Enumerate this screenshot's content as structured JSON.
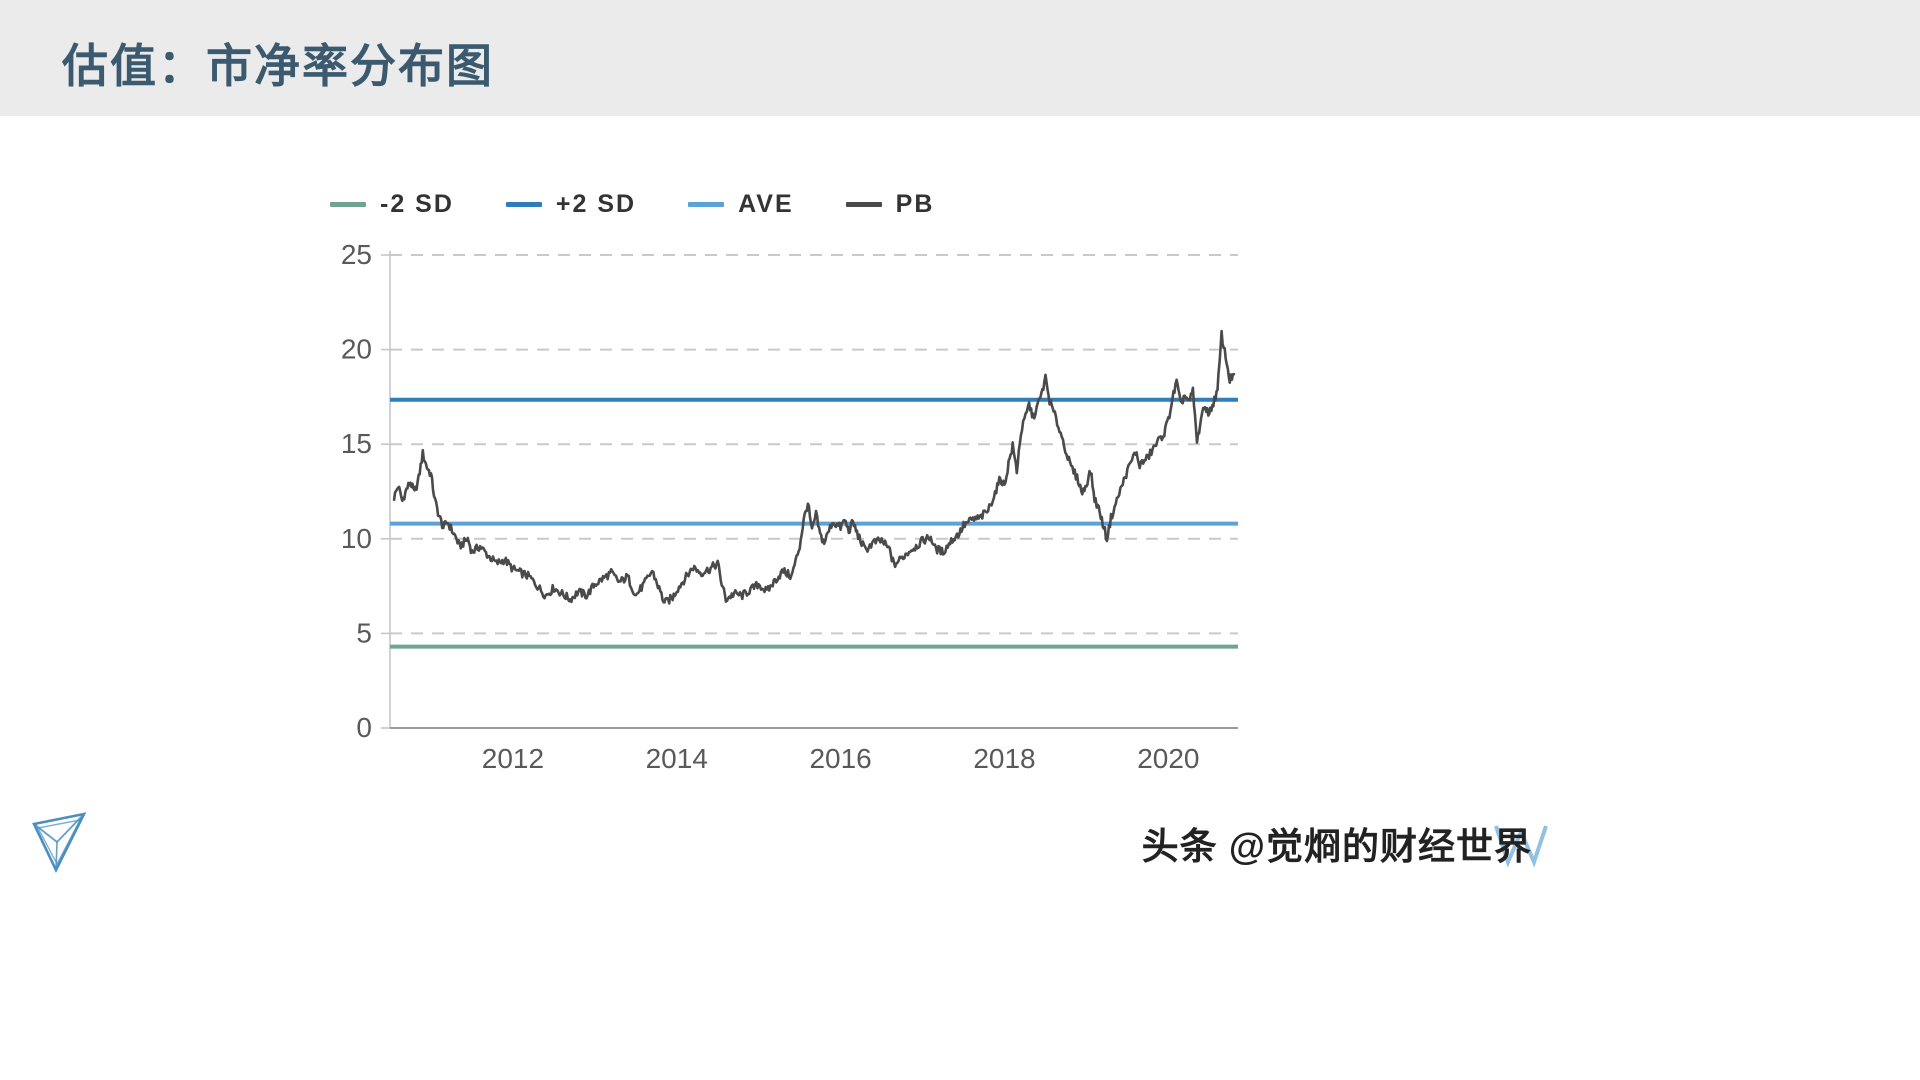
{
  "header": {
    "title": "估值：市净率分布图"
  },
  "watermark": {
    "text": "头条 @觉烱的财经世界"
  },
  "chart_data": {
    "type": "line",
    "title": "",
    "xlabel": "",
    "ylabel": "",
    "xlim": [
      2010.5,
      2020.85
    ],
    "ylim": [
      0,
      25
    ],
    "yticks": [
      0,
      5,
      10,
      15,
      20,
      25
    ],
    "xticks": [
      2012,
      2014,
      2016,
      2018,
      2020
    ],
    "grid": "horizontal-dashed",
    "legend_position": "top",
    "colors": {
      "grid": "#c9c9c9",
      "axis": "#9a9a9a",
      "axis_left": "#c6c6c6",
      "tick_text": "#595959"
    },
    "series": [
      {
        "name": "-2 SD",
        "type": "hline",
        "value": 4.3,
        "color": "#6fa392"
      },
      {
        "name": "+2 SD",
        "type": "hline",
        "value": 17.35,
        "color": "#2e7ebc"
      },
      {
        "name": "AVE",
        "type": "hline",
        "value": 10.8,
        "color": "#5aa2d8"
      },
      {
        "name": "PB",
        "type": "line",
        "color": "#4a4a4a",
        "points": [
          [
            2010.55,
            12.2
          ],
          [
            2010.6,
            12.8
          ],
          [
            2010.65,
            12.0
          ],
          [
            2010.7,
            12.6
          ],
          [
            2010.75,
            13.0
          ],
          [
            2010.8,
            12.4
          ],
          [
            2010.85,
            13.2
          ],
          [
            2010.9,
            14.5
          ],
          [
            2010.95,
            13.8
          ],
          [
            2011.0,
            13.4
          ],
          [
            2011.05,
            12.0
          ],
          [
            2011.1,
            11.2
          ],
          [
            2011.15,
            10.6
          ],
          [
            2011.2,
            10.9
          ],
          [
            2011.3,
            10.1
          ],
          [
            2011.35,
            9.6
          ],
          [
            2011.45,
            10.0
          ],
          [
            2011.5,
            9.3
          ],
          [
            2011.6,
            9.6
          ],
          [
            2011.7,
            9.1
          ],
          [
            2011.8,
            8.7
          ],
          [
            2011.9,
            8.9
          ],
          [
            2012.0,
            8.4
          ],
          [
            2012.1,
            8.2
          ],
          [
            2012.2,
            8.0
          ],
          [
            2012.3,
            7.5
          ],
          [
            2012.4,
            7.0
          ],
          [
            2012.5,
            7.4
          ],
          [
            2012.6,
            7.1
          ],
          [
            2012.7,
            6.8
          ],
          [
            2012.8,
            7.2
          ],
          [
            2012.9,
            7.0
          ],
          [
            2013.0,
            7.6
          ],
          [
            2013.1,
            7.9
          ],
          [
            2013.2,
            8.2
          ],
          [
            2013.3,
            7.7
          ],
          [
            2013.4,
            8.0
          ],
          [
            2013.5,
            7.0
          ],
          [
            2013.6,
            7.6
          ],
          [
            2013.7,
            8.3
          ],
          [
            2013.8,
            7.2
          ],
          [
            2013.85,
            6.6
          ],
          [
            2013.95,
            6.9
          ],
          [
            2014.0,
            7.3
          ],
          [
            2014.1,
            7.9
          ],
          [
            2014.2,
            8.5
          ],
          [
            2014.3,
            8.2
          ],
          [
            2014.4,
            8.4
          ],
          [
            2014.5,
            8.7
          ],
          [
            2014.55,
            7.6
          ],
          [
            2014.6,
            6.8
          ],
          [
            2014.7,
            7.1
          ],
          [
            2014.8,
            7.0
          ],
          [
            2014.9,
            7.3
          ],
          [
            2015.0,
            7.6
          ],
          [
            2015.1,
            7.2
          ],
          [
            2015.2,
            7.8
          ],
          [
            2015.3,
            8.3
          ],
          [
            2015.4,
            8.0
          ],
          [
            2015.45,
            8.8
          ],
          [
            2015.5,
            9.6
          ],
          [
            2015.55,
            11.0
          ],
          [
            2015.6,
            11.9
          ],
          [
            2015.65,
            10.4
          ],
          [
            2015.7,
            11.3
          ],
          [
            2015.75,
            10.2
          ],
          [
            2015.8,
            9.8
          ],
          [
            2015.9,
            10.9
          ],
          [
            2016.0,
            10.6
          ],
          [
            2016.05,
            11.0
          ],
          [
            2016.1,
            10.4
          ],
          [
            2016.15,
            10.9
          ],
          [
            2016.2,
            10.3
          ],
          [
            2016.3,
            9.4
          ],
          [
            2016.4,
            9.8
          ],
          [
            2016.5,
            9.9
          ],
          [
            2016.6,
            9.4
          ],
          [
            2016.65,
            8.6
          ],
          [
            2016.75,
            9.0
          ],
          [
            2016.85,
            9.4
          ],
          [
            2016.95,
            9.7
          ],
          [
            2017.0,
            9.9
          ],
          [
            2017.1,
            10.1
          ],
          [
            2017.15,
            9.5
          ],
          [
            2017.25,
            9.3
          ],
          [
            2017.35,
            9.9
          ],
          [
            2017.45,
            10.3
          ],
          [
            2017.5,
            10.7
          ],
          [
            2017.6,
            11.0
          ],
          [
            2017.7,
            11.1
          ],
          [
            2017.8,
            11.5
          ],
          [
            2017.9,
            12.6
          ],
          [
            2017.95,
            13.2
          ],
          [
            2018.0,
            12.8
          ],
          [
            2018.05,
            14.0
          ],
          [
            2018.1,
            14.9
          ],
          [
            2018.15,
            13.6
          ],
          [
            2018.2,
            15.6
          ],
          [
            2018.3,
            17.1
          ],
          [
            2018.35,
            16.4
          ],
          [
            2018.45,
            17.6
          ],
          [
            2018.5,
            18.5
          ],
          [
            2018.55,
            17.3
          ],
          [
            2018.6,
            16.7
          ],
          [
            2018.7,
            15.4
          ],
          [
            2018.8,
            13.9
          ],
          [
            2018.9,
            13.1
          ],
          [
            2018.95,
            12.4
          ],
          [
            2019.0,
            12.9
          ],
          [
            2019.05,
            13.6
          ],
          [
            2019.1,
            12.1
          ],
          [
            2019.15,
            11.6
          ],
          [
            2019.2,
            10.8
          ],
          [
            2019.25,
            10.0
          ],
          [
            2019.3,
            11.1
          ],
          [
            2019.4,
            12.4
          ],
          [
            2019.5,
            13.6
          ],
          [
            2019.6,
            14.6
          ],
          [
            2019.65,
            13.9
          ],
          [
            2019.75,
            14.3
          ],
          [
            2019.85,
            15.0
          ],
          [
            2019.95,
            15.6
          ],
          [
            2020.0,
            16.3
          ],
          [
            2020.05,
            17.4
          ],
          [
            2020.1,
            18.3
          ],
          [
            2020.15,
            17.1
          ],
          [
            2020.2,
            17.6
          ],
          [
            2020.25,
            17.2
          ],
          [
            2020.3,
            17.8
          ],
          [
            2020.35,
            15.1
          ],
          [
            2020.4,
            16.4
          ],
          [
            2020.45,
            17.0
          ],
          [
            2020.5,
            16.6
          ],
          [
            2020.55,
            17.2
          ],
          [
            2020.6,
            17.8
          ],
          [
            2020.65,
            20.8
          ],
          [
            2020.7,
            19.6
          ],
          [
            2020.75,
            18.4
          ],
          [
            2020.8,
            18.7
          ]
        ]
      }
    ]
  }
}
